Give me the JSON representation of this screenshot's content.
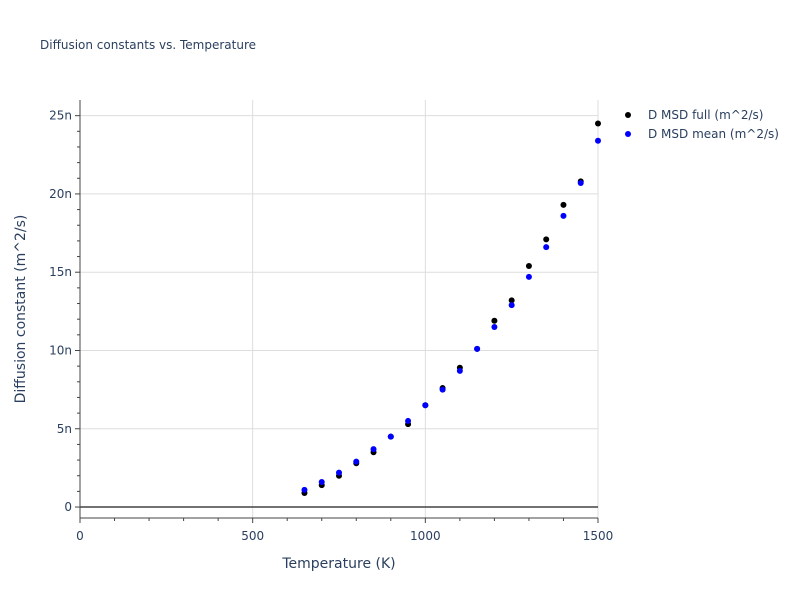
{
  "chart_data": {
    "type": "scatter",
    "title": "Diffusion constants vs. Temperature",
    "xlabel": "Temperature (K)",
    "ylabel": "Diffusion constant (m^2/s)",
    "xlim": [
      0,
      1500
    ],
    "ylim": [
      -0.7,
      26
    ],
    "x_ticks": [
      0,
      500,
      1000,
      1500
    ],
    "x_tick_labels": [
      "0",
      "500",
      "1000",
      "1500"
    ],
    "y_ticks": [
      0,
      5,
      10,
      15,
      20,
      25
    ],
    "y_tick_labels": [
      "0",
      "5n",
      "10n",
      "15n",
      "20n",
      "25n"
    ],
    "grid": true,
    "legend_position": "top-right",
    "series": [
      {
        "name": "D MSD full (m^2/s)",
        "color": "#000000",
        "x": [
          650,
          700,
          750,
          800,
          850,
          900,
          950,
          1000,
          1050,
          1100,
          1150,
          1200,
          1250,
          1300,
          1350,
          1400,
          1450,
          1500
        ],
        "y": [
          0.9,
          1.4,
          2.0,
          2.8,
          3.5,
          4.5,
          5.3,
          6.5,
          7.6,
          8.9,
          10.1,
          11.9,
          13.2,
          15.4,
          17.1,
          19.3,
          20.8,
          24.5
        ]
      },
      {
        "name": "D MSD mean (m^2/s)",
        "color": "#0000ff",
        "x": [
          650,
          700,
          750,
          800,
          850,
          900,
          950,
          1000,
          1050,
          1100,
          1150,
          1200,
          1250,
          1300,
          1350,
          1400,
          1450,
          1500
        ],
        "y": [
          1.1,
          1.6,
          2.2,
          2.9,
          3.7,
          4.5,
          5.5,
          6.5,
          7.5,
          8.7,
          10.1,
          11.5,
          12.9,
          14.7,
          16.6,
          18.6,
          20.7,
          23.4
        ]
      }
    ]
  }
}
